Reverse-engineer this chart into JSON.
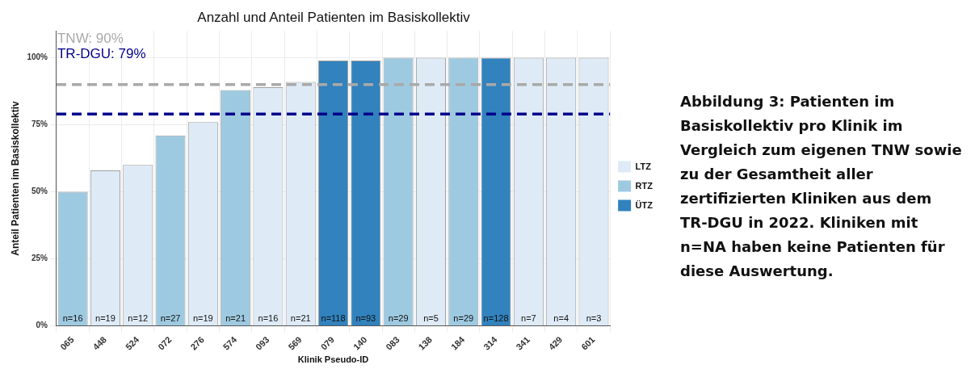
{
  "chart_data": {
    "type": "bar",
    "title": "Anzahl und Anteil Patienten im Basiskollektiv",
    "xlabel": "Klinik Pseudo-ID",
    "ylabel": "Anteil Patienten im Basiskollektiv",
    "categories": [
      "065",
      "448",
      "524",
      "072",
      "276",
      "574",
      "093",
      "569",
      "079",
      "140",
      "083",
      "138",
      "184",
      "314",
      "341",
      "429",
      "601"
    ],
    "stacked": true,
    "series": [
      {
        "name": "LTZ",
        "color": "#deebf7",
        "values": [
          null,
          58,
          60,
          null,
          76,
          null,
          89,
          91,
          null,
          null,
          null,
          100,
          null,
          null,
          100,
          100,
          100
        ]
      },
      {
        "name": "RTZ",
        "color": "#9ecae1",
        "values": [
          50,
          null,
          null,
          71,
          null,
          88,
          null,
          null,
          null,
          null,
          100,
          null,
          100,
          null,
          null,
          null,
          null
        ]
      },
      {
        "name": "ÜTZ",
        "color": "#3182bd",
        "values": [
          null,
          null,
          null,
          null,
          null,
          null,
          null,
          null,
          99,
          99,
          null,
          null,
          null,
          100,
          null,
          null,
          null
        ]
      }
    ],
    "ylim": [
      0,
      110
    ],
    "yticks": [
      {
        "value": 0,
        "label": "0%"
      },
      {
        "value": 25,
        "label": "25%"
      },
      {
        "value": 50,
        "label": "50%"
      },
      {
        "value": 75,
        "label": "75%"
      },
      {
        "value": 100,
        "label": "100%"
      }
    ],
    "grid": true,
    "legend": "right",
    "ref_lines": [
      {
        "axis": "y",
        "value": 90,
        "label": "TNW: 90%",
        "color": "#a9a9a9",
        "line_style": "dashed"
      },
      {
        "axis": "y",
        "value": 79,
        "label": "TR-DGU: 79%",
        "color": "#00008b",
        "line_style": "dashed"
      }
    ],
    "annotations": [
      {
        "text": "n=16",
        "x": "065",
        "y": 0
      },
      {
        "text": "n=19",
        "x": "448",
        "y": 0
      },
      {
        "text": "n=12",
        "x": "524",
        "y": 0
      },
      {
        "text": "n=27",
        "x": "072",
        "y": 0
      },
      {
        "text": "n=19",
        "x": "276",
        "y": 0
      },
      {
        "text": "n=21",
        "x": "574",
        "y": 0
      },
      {
        "text": "n=16",
        "x": "093",
        "y": 0
      },
      {
        "text": "n=21",
        "x": "569",
        "y": 0
      },
      {
        "text": "n=118",
        "x": "079",
        "y": 0
      },
      {
        "text": "n=93",
        "x": "140",
        "y": 0
      },
      {
        "text": "n=29",
        "x": "083",
        "y": 0
      },
      {
        "text": "n=5",
        "x": "138",
        "y": 0
      },
      {
        "text": "n=29",
        "x": "184",
        "y": 0
      },
      {
        "text": "n=128",
        "x": "314",
        "y": 0
      },
      {
        "text": "n=7",
        "x": "341",
        "y": 0
      },
      {
        "text": "n=4",
        "x": "429",
        "y": 0
      },
      {
        "text": "n=3",
        "x": "601",
        "y": 0
      },
      "Abbildung 3: Patienten im Basiskollektiv pro Klinik im Vergleich zum eigenen TNW sowie zu der Gesamtheit aller zertifizierten Kliniken aus dem TR-DGU in 2022. Kliniken mit n=NA haben keine Patienten für diese Auswertung."
    ]
  }
}
